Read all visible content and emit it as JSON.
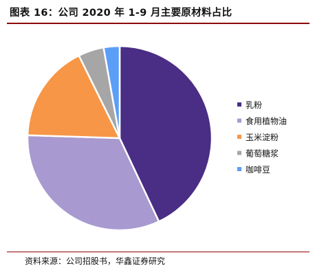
{
  "figure": {
    "title": "图表 16：公司 2020 年 1-9 月主要原材料占比",
    "source": "资料来源：公司招股书，华鑫证券研究"
  },
  "chart_data": {
    "type": "pie",
    "title": "图表 16：公司 2020 年 1-9 月主要原材料占比",
    "labels": [
      "乳粉",
      "食用植物油",
      "玉米淀粉",
      "葡萄糖浆",
      "咖啡豆"
    ],
    "values": [
      43.0,
      32.5,
      17.2,
      4.5,
      2.8
    ],
    "unit": "%",
    "colors": [
      "#4a2d84",
      "#a89ad0",
      "#f79646",
      "#a6a6a6",
      "#5a9ef6"
    ],
    "start": "12 o'clock",
    "direction": "clockwise",
    "legend_position": "right"
  }
}
